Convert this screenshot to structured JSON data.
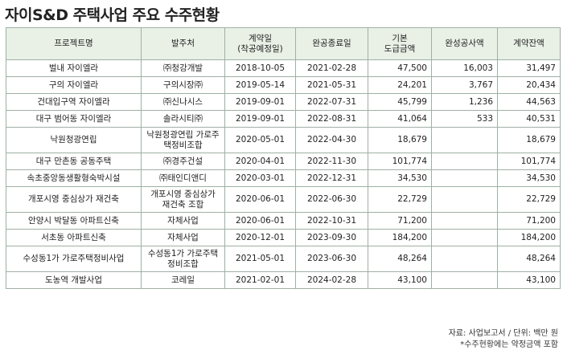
{
  "title": "자이S&D 주택사업 주요 수주현황",
  "table": {
    "headers": [
      {
        "l1": "프로젝트명",
        "l2": ""
      },
      {
        "l1": "발주처",
        "l2": ""
      },
      {
        "l1": "계약일",
        "l2": "(착공예정일)"
      },
      {
        "l1": "완공종료일",
        "l2": ""
      },
      {
        "l1": "기본",
        "l2": "도급금액"
      },
      {
        "l1": "완성공사액",
        "l2": ""
      },
      {
        "l1": "계약잔액",
        "l2": ""
      }
    ],
    "rows": [
      {
        "name": "벌내 자이엘라",
        "client": "㈜청강개발",
        "contract": "2018-10-05",
        "complete": "2021-02-28",
        "amount": "47,500",
        "done": "16,003",
        "remain": "31,497"
      },
      {
        "name": "구의 자이엘라",
        "client": "구의시장㈜",
        "contract": "2019-05-14",
        "complete": "2021-05-31",
        "amount": "24,201",
        "done": "3,767",
        "remain": "20,434"
      },
      {
        "name": "건대입구역 자이엘라",
        "client": "㈜신나시스",
        "contract": "2019-09-01",
        "complete": "2022-07-31",
        "amount": "45,799",
        "done": "1,236",
        "remain": "44,563"
      },
      {
        "name": "대구 범어동 자이엘라",
        "client": "솔라시티㈜",
        "contract": "2019-09-01",
        "complete": "2022-08-31",
        "amount": "41,064",
        "done": "533",
        "remain": "40,531"
      },
      {
        "name": "낙원청광연립",
        "client": "낙원청광연립 가로주택정비조합",
        "contract": "2020-05-01",
        "complete": "2022-04-30",
        "amount": "18,679",
        "done": "",
        "remain": "18,679",
        "tall": true
      },
      {
        "name": "대구 만촌동 공동주택",
        "client": "㈜경주건설",
        "contract": "2020-04-01",
        "complete": "2022-11-30",
        "amount": "101,774",
        "done": "",
        "remain": "101,774"
      },
      {
        "name": "속초중앙동생활형숙박시설",
        "client": "㈜태인디앤디",
        "contract": "2020-03-01",
        "complete": "2022-12-31",
        "amount": "34,530",
        "done": "",
        "remain": "34,530"
      },
      {
        "name": "개포시영 중심상가 재건축",
        "client": "개포시영 중심상가 재건축 조합",
        "contract": "2020-06-01",
        "complete": "2022-06-30",
        "amount": "22,729",
        "done": "",
        "remain": "22,729",
        "tall": true
      },
      {
        "name": "안양시 박달동 아파트신축",
        "client": "자체사업",
        "contract": "2020-06-01",
        "complete": "2022-10-31",
        "amount": "71,200",
        "done": "",
        "remain": "71,200"
      },
      {
        "name": "서초동 아파트신축",
        "client": "자체사업",
        "contract": "2020-12-01",
        "complete": "2023-09-30",
        "amount": "184,200",
        "done": "",
        "remain": "184,200"
      },
      {
        "name": "수성동1가 가로주택정비사업",
        "client": "수성동1가 가로주택정비조합",
        "contract": "2021-05-01",
        "complete": "2023-06-30",
        "amount": "48,264",
        "done": "",
        "remain": "48,264",
        "tall": true
      },
      {
        "name": "도농역 개발사업",
        "client": "코레일",
        "contract": "2021-02-01",
        "complete": "2024-02-28",
        "amount": "43,100",
        "done": "",
        "remain": "43,100"
      }
    ]
  },
  "notes": {
    "source": "자료: 사업보고서 / 단위: 백만 원",
    "footnote": "*수주현황에는 약정금액 포함"
  }
}
